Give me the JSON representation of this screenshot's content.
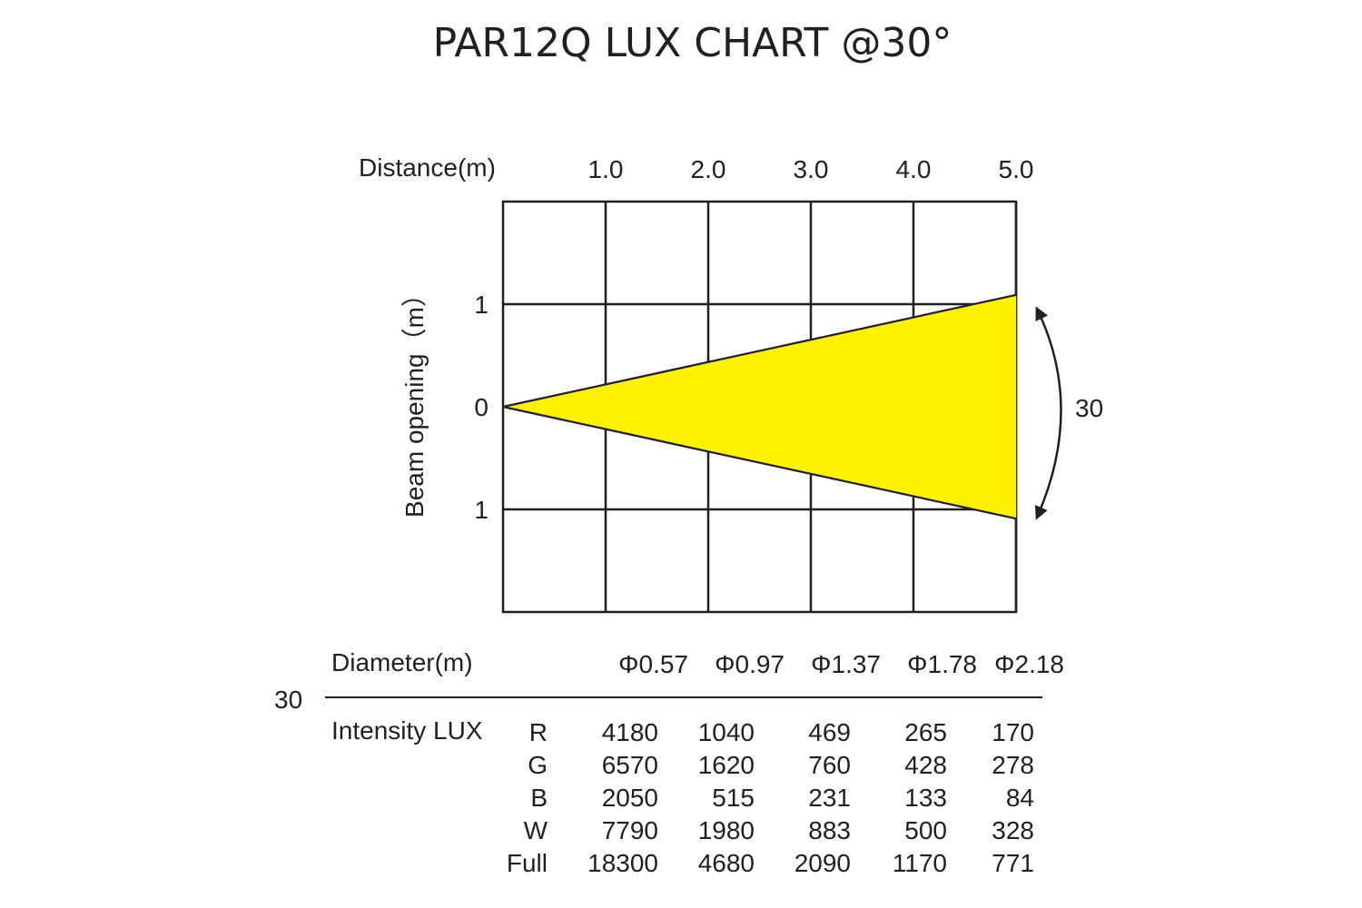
{
  "title": "PAR12Q LUX CHART @30°",
  "chart_data": {
    "type": "table",
    "beam_angle_label": "30",
    "beam_angle_deg": 30,
    "x_axis": {
      "label": "Distance(m)",
      "ticks": [
        "1.0",
        "2.0",
        "3.0",
        "4.0",
        "5.0"
      ],
      "values": [
        1.0,
        2.0,
        3.0,
        4.0,
        5.0
      ],
      "range": [
        0,
        5
      ]
    },
    "y_axis": {
      "label": "Beam opening（m）",
      "ticks": [
        "1",
        "0",
        "1"
      ],
      "values": [
        1,
        0,
        -1
      ],
      "range": [
        -2,
        2
      ]
    },
    "beam": {
      "color": "#fff200",
      "half_width_at_max": 1.09
    },
    "table": {
      "angle_label": "30",
      "diameter_label": "Diameter(m)",
      "diameters": [
        "Φ0.57",
        "Φ0.97",
        "Φ1.37",
        "Φ1.78",
        "Φ2.18"
      ],
      "intensity_label": "Intensity LUX",
      "rows": [
        {
          "name": "R",
          "values": [
            "4180",
            "1040",
            "469",
            "265",
            "170"
          ]
        },
        {
          "name": "G",
          "values": [
            "6570",
            "1620",
            "760",
            "428",
            "278"
          ]
        },
        {
          "name": "B",
          "values": [
            "2050",
            "515",
            "231",
            "133",
            "84"
          ]
        },
        {
          "name": "W",
          "values": [
            "7790",
            "1980",
            "883",
            "500",
            "328"
          ]
        },
        {
          "name": "Full",
          "values": [
            "18300",
            "4680",
            "2090",
            "1170",
            "771"
          ]
        }
      ]
    }
  }
}
